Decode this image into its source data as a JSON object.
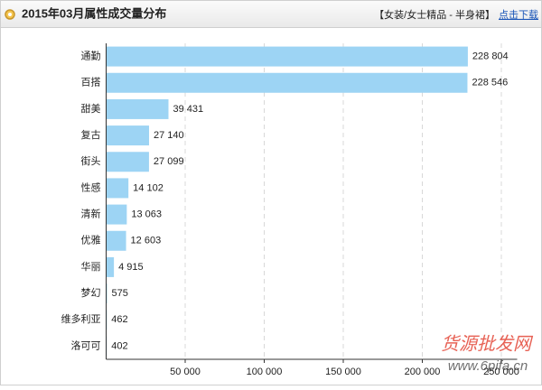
{
  "header": {
    "title": "2015年03月属性成交量分布",
    "category": "【女装/女士精品 - 半身裙】",
    "download": "点击下载"
  },
  "chart_data": {
    "type": "hbar",
    "categories": [
      "通勤",
      "百搭",
      "甜美",
      "复古",
      "街头",
      "性感",
      "清新",
      "优雅",
      "华丽",
      "梦幻",
      "维多利亚",
      "洛可可"
    ],
    "values": [
      228804,
      228546,
      39431,
      27140,
      27099,
      14102,
      13063,
      12603,
      4915,
      575,
      462,
      402
    ],
    "value_labels": [
      "228 804",
      "228 546",
      "39 431",
      "27 140",
      "27 099",
      "14 102",
      "13 063",
      "12 603",
      "4 915",
      "575",
      "462",
      "402"
    ],
    "color": "#9dd4f4",
    "xlim": [
      0,
      260000
    ],
    "xticks": [
      {
        "value": 50000,
        "label": "50 000"
      },
      {
        "value": 100000,
        "label": "100 000"
      },
      {
        "value": 150000,
        "label": "150 000"
      },
      {
        "value": 200000,
        "label": "200 000"
      },
      {
        "value": 250000,
        "label": "250 000"
      }
    ],
    "grid": true
  },
  "watermark": [
    "货源批发网",
    "www.6pifa.cn"
  ]
}
